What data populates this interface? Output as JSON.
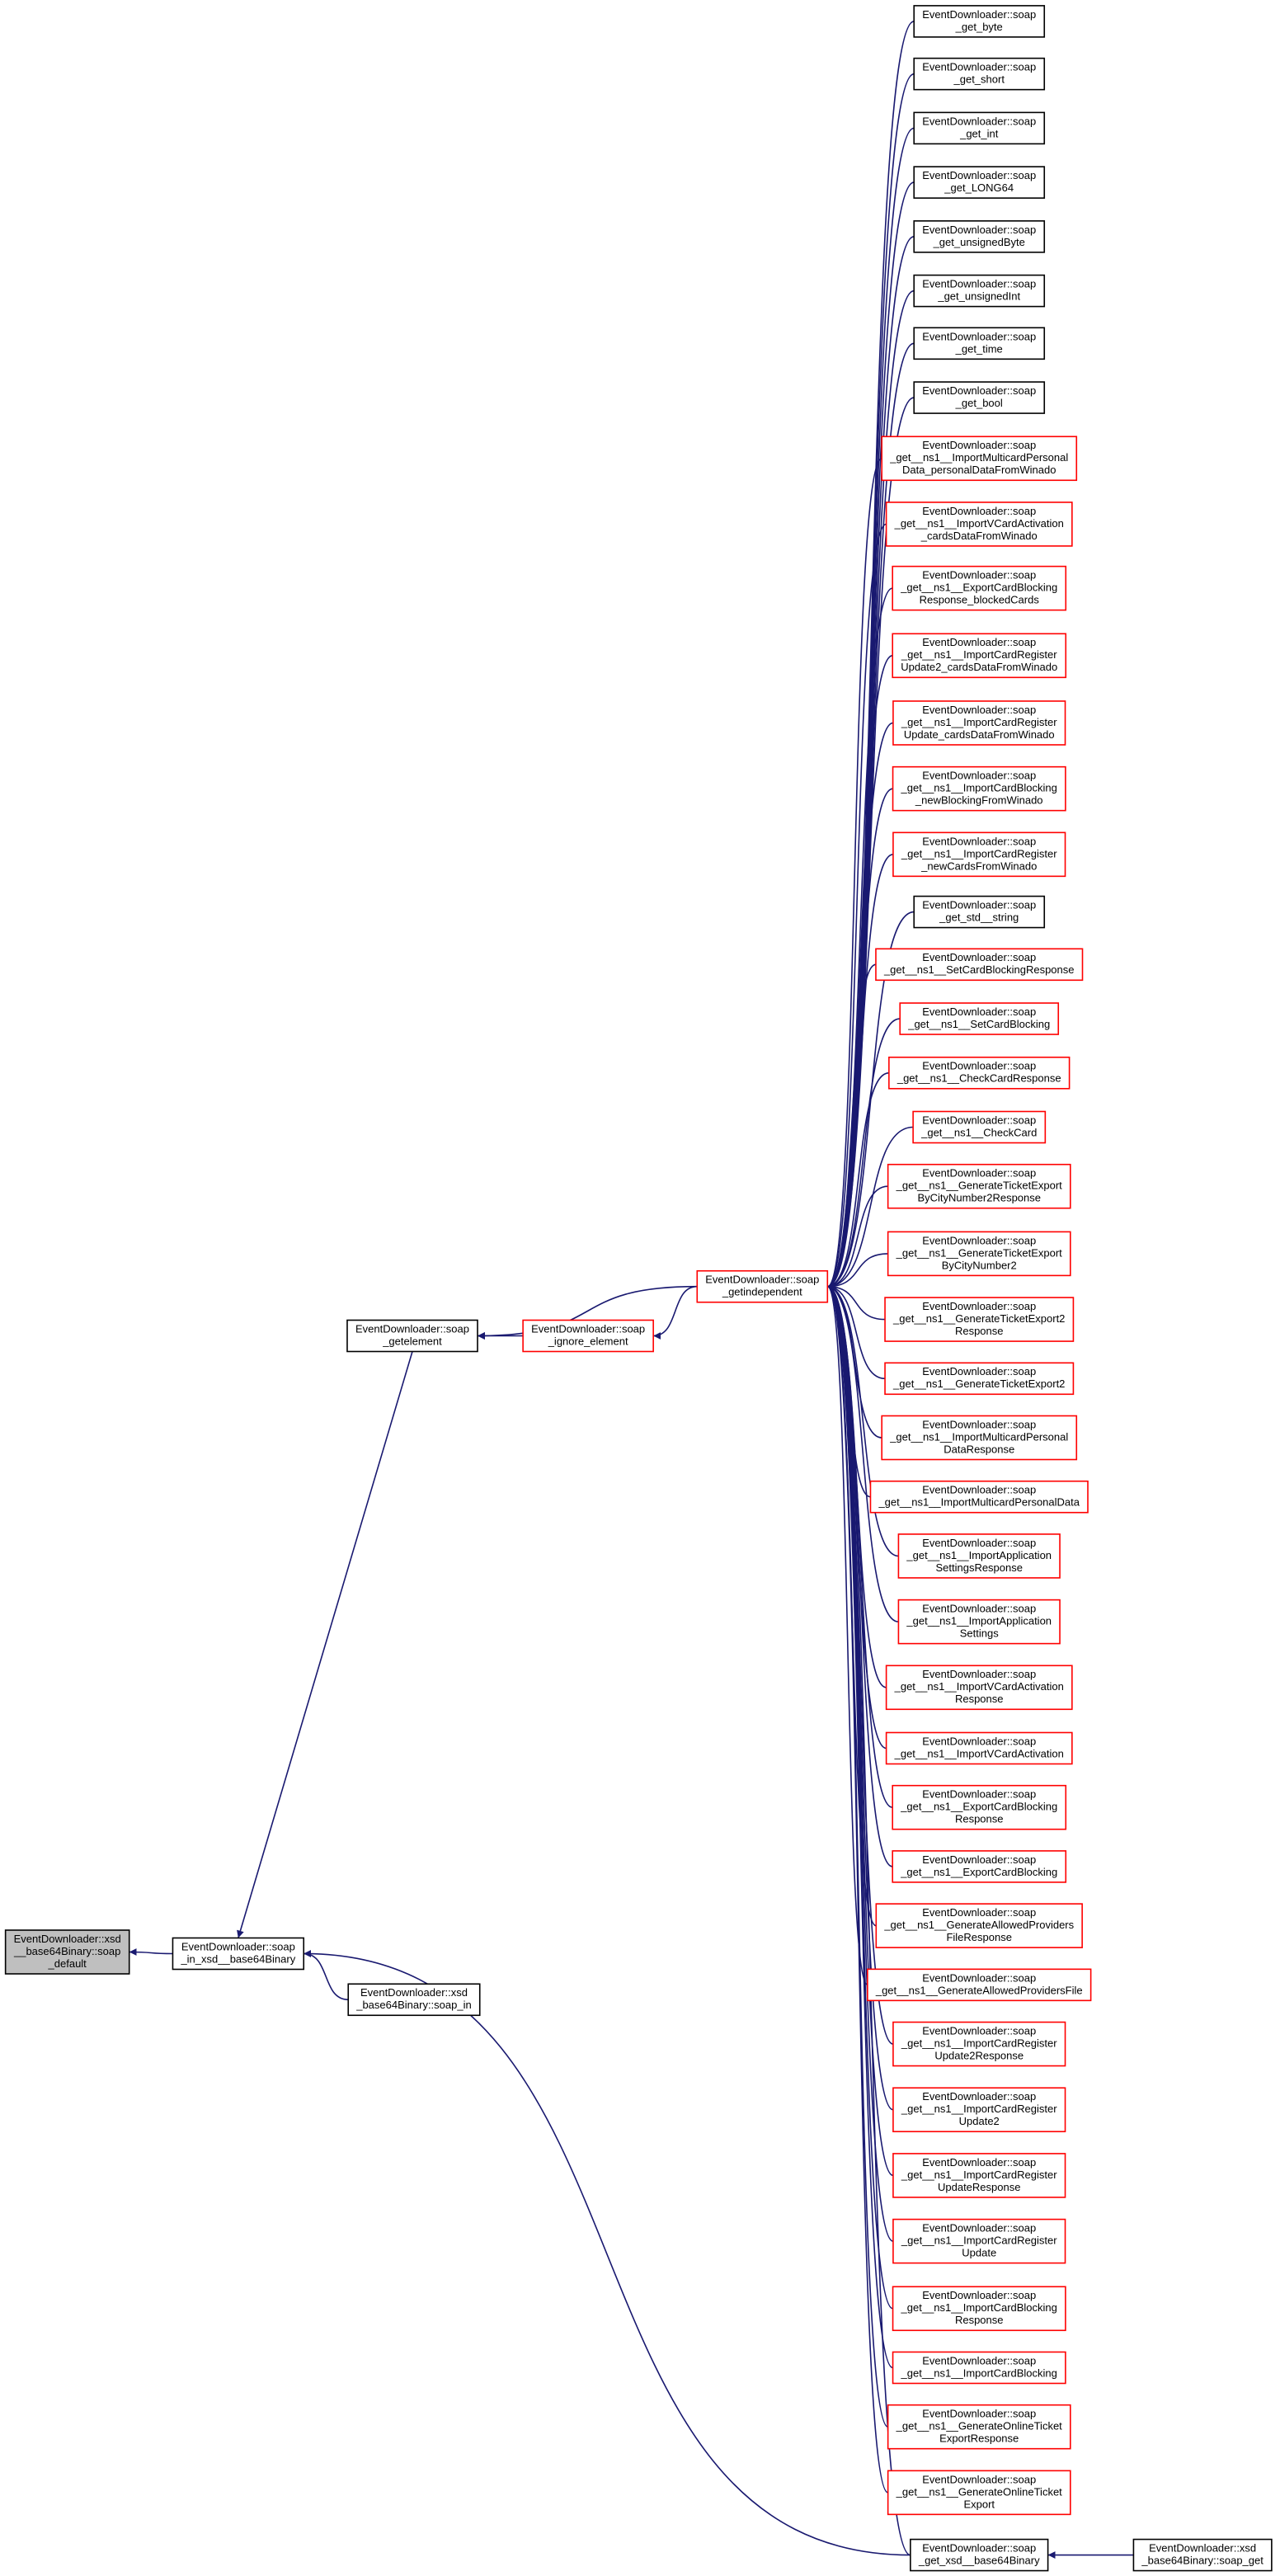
{
  "nodes": [
    {
      "label": [
        "EventDownloader::soap",
        "_get_byte"
      ],
      "color": "#000000"
    },
    {
      "label": [
        "EventDownloader::soap",
        "_get_short"
      ],
      "color": "#000000"
    },
    {
      "label": [
        "EventDownloader::soap",
        "_get_int"
      ],
      "color": "#000000"
    },
    {
      "label": [
        "EventDownloader::soap",
        "_get_LONG64"
      ],
      "color": "#000000"
    },
    {
      "label": [
        "EventDownloader::soap",
        "_get_unsignedByte"
      ],
      "color": "#000000"
    },
    {
      "label": [
        "EventDownloader::soap",
        "_get_unsignedInt"
      ],
      "color": "#000000"
    },
    {
      "label": [
        "EventDownloader::soap",
        "_get_time"
      ],
      "color": "#000000"
    },
    {
      "label": [
        "EventDownloader::soap",
        "_get_bool"
      ],
      "color": "#000000"
    },
    {
      "label": [
        "EventDownloader::soap",
        "_get__ns1__ImportMulticardPersonal",
        "Data_personalDataFromWinado"
      ],
      "color": "#ff0000"
    },
    {
      "label": [
        "EventDownloader::soap",
        "_get__ns1__ImportVCardActivation",
        "_cardsDataFromWinado"
      ],
      "color": "#ff0000"
    },
    {
      "label": [
        "EventDownloader::soap",
        "_get__ns1__ExportCardBlocking",
        "Response_blockedCards"
      ],
      "color": "#ff0000"
    },
    {
      "label": [
        "EventDownloader::soap",
        "_get__ns1__ImportCardRegister",
        "Update2_cardsDataFromWinado"
      ],
      "color": "#ff0000"
    },
    {
      "label": [
        "EventDownloader::soap",
        "_get__ns1__ImportCardRegister",
        "Update_cardsDataFromWinado"
      ],
      "color": "#ff0000"
    },
    {
      "label": [
        "EventDownloader::soap",
        "_get__ns1__ImportCardBlocking",
        "_newBlockingFromWinado"
      ],
      "color": "#ff0000"
    },
    {
      "label": [
        "EventDownloader::soap",
        "_get__ns1__ImportCardRegister",
        "_newCardsFromWinado"
      ],
      "color": "#ff0000"
    },
    {
      "label": [
        "EventDownloader::soap",
        "_get_std__string"
      ],
      "color": "#000000"
    },
    {
      "label": [
        "EventDownloader::soap",
        "_get__ns1__SetCardBlockingResponse"
      ],
      "color": "#ff0000"
    },
    {
      "label": [
        "EventDownloader::soap",
        "_get__ns1__SetCardBlocking"
      ],
      "color": "#ff0000"
    },
    {
      "label": [
        "EventDownloader::soap",
        "_get__ns1__CheckCardResponse"
      ],
      "color": "#ff0000"
    },
    {
      "label": [
        "EventDownloader::soap",
        "_get__ns1__CheckCard"
      ],
      "color": "#ff0000"
    },
    {
      "label": [
        "EventDownloader::soap",
        "_get__ns1__GenerateTicketExport",
        "ByCityNumber2Response"
      ],
      "color": "#ff0000"
    },
    {
      "label": [
        "EventDownloader::soap",
        "_get__ns1__GenerateTicketExport",
        "ByCityNumber2"
      ],
      "color": "#ff0000"
    },
    {
      "label": [
        "EventDownloader::soap",
        "_get__ns1__GenerateTicketExport2",
        "Response"
      ],
      "color": "#ff0000"
    },
    {
      "label": [
        "EventDownloader::soap",
        "_get__ns1__GenerateTicketExport2"
      ],
      "color": "#ff0000"
    },
    {
      "label": [
        "EventDownloader::soap",
        "_get__ns1__ImportMulticardPersonal",
        "DataResponse"
      ],
      "color": "#ff0000"
    },
    {
      "label": [
        "EventDownloader::soap",
        "_get__ns1__ImportMulticardPersonalData"
      ],
      "color": "#ff0000"
    },
    {
      "label": [
        "EventDownloader::soap",
        "_get__ns1__ImportApplication",
        "SettingsResponse"
      ],
      "color": "#ff0000"
    },
    {
      "label": [
        "EventDownloader::soap",
        "_get__ns1__ImportApplication",
        "Settings"
      ],
      "color": "#ff0000"
    },
    {
      "label": [
        "EventDownloader::soap",
        "_get__ns1__ImportVCardActivation",
        "Response"
      ],
      "color": "#ff0000"
    },
    {
      "label": [
        "EventDownloader::soap",
        "_get__ns1__ImportVCardActivation"
      ],
      "color": "#ff0000"
    },
    {
      "label": [
        "EventDownloader::soap",
        "_get__ns1__ExportCardBlocking",
        "Response"
      ],
      "color": "#ff0000"
    },
    {
      "label": [
        "EventDownloader::soap",
        "_get__ns1__ExportCardBlocking"
      ],
      "color": "#ff0000"
    },
    {
      "label": [
        "EventDownloader::soap",
        "_get__ns1__GenerateAllowedProviders",
        "FileResponse"
      ],
      "color": "#ff0000"
    },
    {
      "label": [
        "EventDownloader::soap",
        "_get__ns1__GenerateAllowedProvidersFile"
      ],
      "color": "#ff0000"
    },
    {
      "label": [
        "EventDownloader::soap",
        "_get__ns1__ImportCardRegister",
        "Update2Response"
      ],
      "color": "#ff0000"
    },
    {
      "label": [
        "EventDownloader::soap",
        "_get__ns1__ImportCardRegister",
        "Update2"
      ],
      "color": "#ff0000"
    },
    {
      "label": [
        "EventDownloader::soap",
        "_get__ns1__ImportCardRegister",
        "UpdateResponse"
      ],
      "color": "#ff0000"
    },
    {
      "label": [
        "EventDownloader::soap",
        "_get__ns1__ImportCardRegister",
        "Update"
      ],
      "color": "#ff0000"
    },
    {
      "label": [
        "EventDownloader::soap",
        "_get__ns1__ImportCardBlocking",
        "Response"
      ],
      "color": "#ff0000"
    },
    {
      "label": [
        "EventDownloader::soap",
        "_get__ns1__ImportCardBlocking"
      ],
      "color": "#ff0000"
    },
    {
      "label": [
        "EventDownloader::soap",
        "_get__ns1__GenerateOnlineTicket",
        "ExportResponse"
      ],
      "color": "#ff0000"
    },
    {
      "label": [
        "EventDownloader::soap",
        "_get__ns1__GenerateOnlineTicket",
        "Export"
      ],
      "color": "#ff0000"
    },
    {
      "label": [
        "EventDownloader::soap",
        "_get_xsd__base64Binary"
      ],
      "color": "#000000"
    },
    {
      "label": [
        "EventDownloader::xsd",
        "_base64Binary::soap_get"
      ],
      "color": "#000000"
    },
    {
      "label": [
        "EventDownloader::soap",
        "_getindependent"
      ],
      "color": "#ff0000"
    },
    {
      "label": [
        "EventDownloader::soap",
        "_ignore_element"
      ],
      "color": "#ff0000"
    },
    {
      "label": [
        "EventDownloader::soap",
        "_getelement"
      ],
      "color": "#000000"
    },
    {
      "label": [
        "EventDownloader::soap",
        "_in_xsd__base64Binary"
      ],
      "color": "#000000"
    },
    {
      "label": [
        "EventDownloader::xsd",
        "_base64Binary::soap_in"
      ],
      "color": "#000000"
    },
    {
      "label": [
        "EventDownloader::xsd",
        "__base64Binary::soap",
        "_default"
      ],
      "color": "#000000",
      "fill": "#bfbfbf"
    }
  ]
}
